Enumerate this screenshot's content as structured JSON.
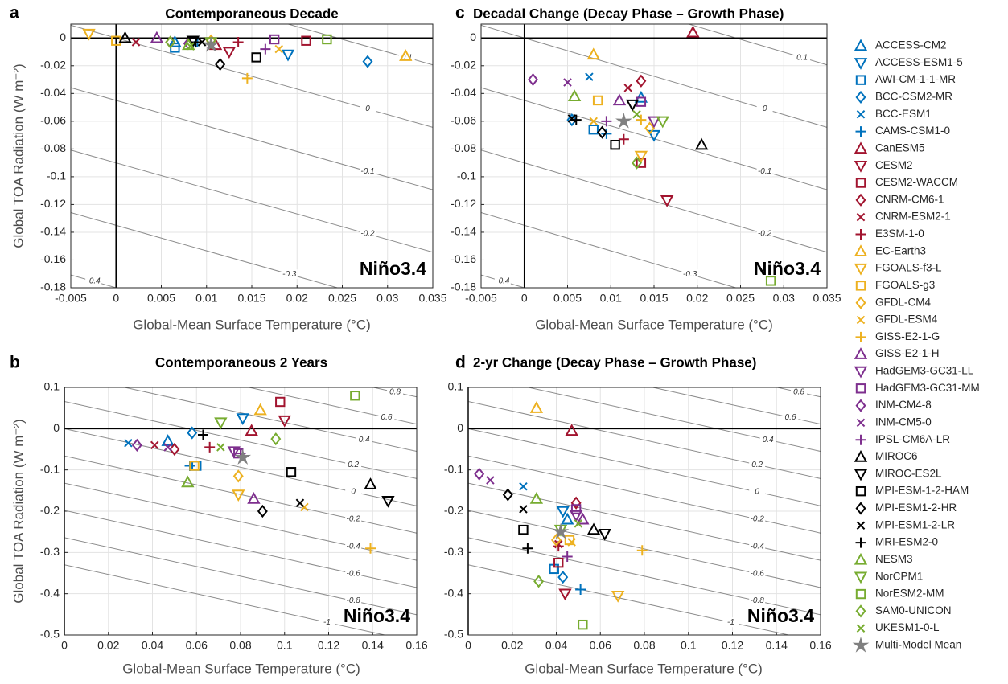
{
  "legend": [
    {
      "name": "ACCESS-CM2",
      "color": "#0072bd",
      "marker": "triangle-up"
    },
    {
      "name": "ACCESS-ESM1-5",
      "color": "#0072bd",
      "marker": "triangle-down"
    },
    {
      "name": "AWI-CM-1-1-MR",
      "color": "#0072bd",
      "marker": "square"
    },
    {
      "name": "BCC-CSM2-MR",
      "color": "#0072bd",
      "marker": "diamond"
    },
    {
      "name": "BCC-ESM1",
      "color": "#0072bd",
      "marker": "x"
    },
    {
      "name": "CAMS-CSM1-0",
      "color": "#0072bd",
      "marker": "plus"
    },
    {
      "name": "CanESM5",
      "color": "#a2142f",
      "marker": "triangle-up"
    },
    {
      "name": "CESM2",
      "color": "#a2142f",
      "marker": "triangle-down"
    },
    {
      "name": "CESM2-WACCM",
      "color": "#a2142f",
      "marker": "square"
    },
    {
      "name": "CNRM-CM6-1",
      "color": "#a2142f",
      "marker": "diamond"
    },
    {
      "name": "CNRM-ESM2-1",
      "color": "#a2142f",
      "marker": "x"
    },
    {
      "name": "E3SM-1-0",
      "color": "#a2142f",
      "marker": "plus"
    },
    {
      "name": "EC-Earth3",
      "color": "#edb120",
      "marker": "triangle-up"
    },
    {
      "name": "FGOALS-f3-L",
      "color": "#edb120",
      "marker": "triangle-down"
    },
    {
      "name": "FGOALS-g3",
      "color": "#edb120",
      "marker": "square"
    },
    {
      "name": "GFDL-CM4",
      "color": "#edb120",
      "marker": "diamond"
    },
    {
      "name": "GFDL-ESM4",
      "color": "#edb120",
      "marker": "x"
    },
    {
      "name": "GISS-E2-1-G",
      "color": "#edb120",
      "marker": "plus"
    },
    {
      "name": "GISS-E2-1-H",
      "color": "#7e2f8e",
      "marker": "triangle-up"
    },
    {
      "name": "HadGEM3-GC31-LL",
      "color": "#7e2f8e",
      "marker": "triangle-down"
    },
    {
      "name": "HadGEM3-GC31-MM",
      "color": "#7e2f8e",
      "marker": "square"
    },
    {
      "name": "INM-CM4-8",
      "color": "#7e2f8e",
      "marker": "diamond"
    },
    {
      "name": "INM-CM5-0",
      "color": "#7e2f8e",
      "marker": "x"
    },
    {
      "name": "IPSL-CM6A-LR",
      "color": "#7e2f8e",
      "marker": "plus"
    },
    {
      "name": "MIROC6",
      "color": "#000000",
      "marker": "triangle-up"
    },
    {
      "name": "MIROC-ES2L",
      "color": "#000000",
      "marker": "triangle-down"
    },
    {
      "name": "MPI-ESM-1-2-HAM",
      "color": "#000000",
      "marker": "square"
    },
    {
      "name": "MPI-ESM1-2-HR",
      "color": "#000000",
      "marker": "diamond"
    },
    {
      "name": "MPI-ESM1-2-LR",
      "color": "#000000",
      "marker": "x"
    },
    {
      "name": "MRI-ESM2-0",
      "color": "#000000",
      "marker": "plus"
    },
    {
      "name": "NESM3",
      "color": "#77ac30",
      "marker": "triangle-up"
    },
    {
      "name": "NorCPM1",
      "color": "#77ac30",
      "marker": "triangle-down"
    },
    {
      "name": "NorESM2-MM",
      "color": "#77ac30",
      "marker": "square"
    },
    {
      "name": "SAM0-UNICON",
      "color": "#77ac30",
      "marker": "diamond"
    },
    {
      "name": "UKESM1-0-L",
      "color": "#77ac30",
      "marker": "x"
    },
    {
      "name": "Multi-Model Mean",
      "color": "#808080",
      "marker": "star"
    }
  ],
  "chart_data": [
    {
      "type": "scatter",
      "panel_label": "a",
      "title": "Contemporaneous Decade",
      "xlabel": "Global-Mean Surface Temperature (°C)",
      "ylabel": "Global TOA Radiation (W m⁻²)",
      "annotation": "Niño3.4",
      "xlim": [
        -0.005,
        0.035
      ],
      "xticks": [
        -0.005,
        0,
        0.005,
        0.01,
        0.015,
        0.02,
        0.025,
        0.03,
        0.035
      ],
      "ylim": [
        -0.18,
        0.01
      ],
      "yticks": [
        -0.18,
        -0.16,
        -0.14,
        -0.12,
        -0.1,
        -0.08,
        -0.06,
        -0.04,
        -0.02,
        0
      ],
      "grid": true,
      "x": [
        0.0065,
        0.019,
        0.0065,
        0.0278,
        0.0085,
        0.009,
        0.011,
        0.0125,
        0.021,
        0.006,
        0.0022,
        0.0135,
        0.032,
        -0.003,
        0.0,
        0.0105,
        0.018,
        0.0145,
        0.0045,
        0.0105,
        0.0175,
        0.008,
        0.0105,
        0.0165,
        0.001,
        0.0085,
        0.0155,
        0.0115,
        0.0095,
        0.0088,
        0.008,
        0.0105,
        0.0233,
        0.006,
        0.0082,
        0.0105
      ],
      "values": [
        -0.003,
        -0.012,
        -0.007,
        -0.017,
        -0.004,
        -0.003,
        -0.005,
        -0.01,
        -0.002,
        -0.003,
        -0.003,
        -0.003,
        -0.013,
        0.003,
        -0.002,
        -0.002,
        -0.008,
        -0.029,
        0.0,
        -0.003,
        -0.001,
        -0.004,
        -0.005,
        -0.008,
        0.0,
        -0.002,
        -0.014,
        -0.019,
        -0.003,
        -0.003,
        -0.005,
        -0.003,
        -0.001,
        -0.003,
        -0.006,
        -0.005
      ],
      "contours": [
        {
          "level": 0.1,
          "x": [
            -0.005,
            0.035
          ],
          "y": [
            0.0542,
            -0.0194
          ]
        },
        {
          "level": 0,
          "x": [
            -0.005,
            0.035
          ],
          "y": [
            0.0092,
            -0.0644
          ]
        },
        {
          "level": -0.1,
          "x": [
            -0.005,
            0.035
          ],
          "y": [
            -0.0358,
            -0.1094
          ]
        },
        {
          "level": -0.2,
          "x": [
            -0.005,
            0.035
          ],
          "y": [
            -0.0808,
            -0.1544
          ]
        },
        {
          "level": -0.3,
          "x": [
            -0.005,
            0.035
          ],
          "y": [
            -0.1258,
            -0.1994
          ]
        },
        {
          "level": -0.4,
          "x": [
            -0.005,
            0.035
          ],
          "y": [
            -0.1708,
            -0.2444
          ]
        }
      ]
    },
    {
      "type": "scatter",
      "panel_label": "b",
      "title": "Contemporaneous 2 Years",
      "xlabel": "Global-Mean Surface Temperature (°C)",
      "ylabel": "Global TOA Radiation (W m⁻²)",
      "annotation": "Niño3.4",
      "xlim": [
        0,
        0.16
      ],
      "xticks": [
        0,
        0.02,
        0.04,
        0.06,
        0.08,
        0.1,
        0.12,
        0.14,
        0.16
      ],
      "ylim": [
        -0.5,
        0.1
      ],
      "yticks": [
        -0.5,
        -0.4,
        -0.3,
        -0.2,
        -0.1,
        0,
        0.1
      ],
      "grid": true,
      "x": [
        0.047,
        0.081,
        0.06,
        0.058,
        0.029,
        0.057,
        0.085,
        0.1,
        0.098,
        0.05,
        0.041,
        0.066,
        0.089,
        0.079,
        0.059,
        0.079,
        0.109,
        0.139,
        0.086,
        0.077,
        0.079,
        0.033,
        0.047,
        0.08,
        0.139,
        0.147,
        0.103,
        0.09,
        0.107,
        0.063,
        0.056,
        0.071,
        0.132,
        0.096,
        0.071,
        0.081
      ],
      "values": [
        -0.03,
        0.025,
        -0.09,
        -0.01,
        -0.035,
        -0.09,
        -0.005,
        0.02,
        0.065,
        -0.05,
        -0.04,
        -0.045,
        0.045,
        -0.16,
        -0.09,
        -0.115,
        -0.19,
        -0.29,
        -0.17,
        -0.055,
        -0.06,
        -0.04,
        -0.045,
        -0.06,
        -0.135,
        -0.175,
        -0.105,
        -0.2,
        -0.18,
        -0.015,
        -0.13,
        0.015,
        0.08,
        -0.025,
        -0.045,
        -0.07
      ],
      "contours": [
        {
          "level": 0.8,
          "x": [
            0,
            0.16
          ],
          "y": [
            0.264,
            0.077
          ]
        },
        {
          "level": 0.6,
          "x": [
            0,
            0.16
          ],
          "y": [
            0.198,
            0.011
          ]
        },
        {
          "level": 0.4,
          "x": [
            0,
            0.16
          ],
          "y": [
            0.132,
            -0.055
          ]
        },
        {
          "level": 0.2,
          "x": [
            0,
            0.16
          ],
          "y": [
            0.066,
            -0.121
          ]
        },
        {
          "level": 0,
          "x": [
            0,
            0.16
          ],
          "y": [
            0,
            -0.187
          ]
        },
        {
          "level": -0.2,
          "x": [
            0,
            0.16
          ],
          "y": [
            -0.066,
            -0.253
          ]
        },
        {
          "level": -0.4,
          "x": [
            0,
            0.16
          ],
          "y": [
            -0.132,
            -0.319
          ]
        },
        {
          "level": -0.6,
          "x": [
            0,
            0.16
          ],
          "y": [
            -0.198,
            -0.385
          ]
        },
        {
          "level": -0.8,
          "x": [
            0,
            0.16
          ],
          "y": [
            -0.264,
            -0.451
          ]
        },
        {
          "level": -1,
          "x": [
            0,
            0.16
          ],
          "y": [
            -0.33,
            -0.517
          ]
        }
      ]
    },
    {
      "type": "scatter",
      "panel_label": "c",
      "title": "Decadal Change (Decay Phase – Growth Phase)",
      "xlabel": "Global-Mean Surface Temperature (°C)",
      "annotation": "Niño3.4",
      "xlim": [
        -0.005,
        0.035
      ],
      "xticks": [
        -0.005,
        0,
        0.005,
        0.01,
        0.015,
        0.02,
        0.025,
        0.03,
        0.035
      ],
      "ylim": [
        -0.18,
        0.01
      ],
      "yticks": [
        -0.18,
        -0.16,
        -0.14,
        -0.12,
        -0.1,
        -0.08,
        -0.06,
        -0.04,
        -0.02,
        0
      ],
      "grid": true,
      "x": [
        0.0135,
        0.015,
        0.008,
        0.0055,
        0.0075,
        0.0095,
        0.0195,
        0.0165,
        0.0135,
        0.0135,
        0.012,
        0.0115,
        0.008,
        0.0135,
        0.0085,
        0.0145,
        0.008,
        0.0135,
        0.011,
        0.015,
        0.0135,
        0.001,
        0.005,
        0.0095,
        0.0205,
        0.0125,
        0.0105,
        0.009,
        0.0055,
        0.006,
        0.0058,
        0.016,
        0.0285,
        0.013,
        0.013,
        0.0115
      ],
      "values": [
        -0.043,
        -0.07,
        -0.066,
        -0.059,
        -0.028,
        -0.069,
        0.004,
        -0.117,
        -0.09,
        -0.031,
        -0.036,
        -0.073,
        -0.012,
        -0.085,
        -0.045,
        -0.065,
        -0.06,
        -0.059,
        -0.045,
        -0.06,
        -0.046,
        -0.03,
        -0.032,
        -0.06,
        -0.077,
        -0.048,
        -0.077,
        -0.068,
        -0.058,
        -0.059,
        -0.042,
        -0.06,
        -0.175,
        -0.09,
        -0.055,
        -0.06
      ],
      "contours": [
        {
          "level": 0.1,
          "x": [
            -0.005,
            0.035
          ],
          "y": [
            0.0542,
            -0.0194
          ]
        },
        {
          "level": 0,
          "x": [
            -0.005,
            0.035
          ],
          "y": [
            0.0092,
            -0.0644
          ]
        },
        {
          "level": -0.1,
          "x": [
            -0.005,
            0.035
          ],
          "y": [
            -0.0358,
            -0.1094
          ]
        },
        {
          "level": -0.2,
          "x": [
            -0.005,
            0.035
          ],
          "y": [
            -0.0808,
            -0.1544
          ]
        },
        {
          "level": -0.3,
          "x": [
            -0.005,
            0.035
          ],
          "y": [
            -0.1258,
            -0.1994
          ]
        },
        {
          "level": -0.4,
          "x": [
            -0.005,
            0.035
          ],
          "y": [
            -0.1708,
            -0.2444
          ]
        }
      ]
    },
    {
      "type": "scatter",
      "panel_label": "d",
      "title": "2-yr Change (Decay Phase – Growth Phase)",
      "xlabel": "Global-Mean Surface Temperature (°C)",
      "annotation": "Niño3.4",
      "xlim": [
        0,
        0.16
      ],
      "xticks": [
        0,
        0.02,
        0.04,
        0.06,
        0.08,
        0.1,
        0.12,
        0.14,
        0.16
      ],
      "ylim": [
        -0.5,
        0.1
      ],
      "yticks": [
        -0.5,
        -0.4,
        -0.3,
        -0.2,
        -0.1,
        0,
        0.1
      ],
      "grid": true,
      "x": [
        0.045,
        0.043,
        0.039,
        0.043,
        0.025,
        0.051,
        0.047,
        0.044,
        0.041,
        0.049,
        0.041,
        0.041,
        0.031,
        0.068,
        0.046,
        0.04,
        0.047,
        0.079,
        0.052,
        0.049,
        0.049,
        0.005,
        0.01,
        0.045,
        0.057,
        0.062,
        0.025,
        0.018,
        0.025,
        0.027,
        0.031,
        0.042,
        0.052,
        0.032,
        0.05,
        0.042
      ],
      "values": [
        -0.22,
        -0.2,
        -0.34,
        -0.36,
        -0.14,
        -0.39,
        -0.005,
        -0.4,
        -0.325,
        -0.18,
        -0.28,
        -0.285,
        0.05,
        -0.405,
        -0.27,
        -0.27,
        -0.275,
        -0.295,
        -0.22,
        -0.21,
        -0.195,
        -0.11,
        -0.125,
        -0.31,
        -0.245,
        -0.255,
        -0.245,
        -0.16,
        -0.195,
        -0.29,
        -0.17,
        -0.245,
        -0.475,
        -0.37,
        -0.23,
        -0.25
      ],
      "contours": [
        {
          "level": 0.8,
          "x": [
            0,
            0.16
          ],
          "y": [
            0.264,
            0.077
          ]
        },
        {
          "level": 0.6,
          "x": [
            0,
            0.16
          ],
          "y": [
            0.198,
            0.011
          ]
        },
        {
          "level": 0.4,
          "x": [
            0,
            0.16
          ],
          "y": [
            0.132,
            -0.055
          ]
        },
        {
          "level": 0.2,
          "x": [
            0,
            0.16
          ],
          "y": [
            0.066,
            -0.121
          ]
        },
        {
          "level": 0,
          "x": [
            0,
            0.16
          ],
          "y": [
            0,
            -0.187
          ]
        },
        {
          "level": -0.2,
          "x": [
            0,
            0.16
          ],
          "y": [
            -0.066,
            -0.253
          ]
        },
        {
          "level": -0.4,
          "x": [
            0,
            0.16
          ],
          "y": [
            -0.132,
            -0.319
          ]
        },
        {
          "level": -0.6,
          "x": [
            0,
            0.16
          ],
          "y": [
            -0.198,
            -0.385
          ]
        },
        {
          "level": -0.8,
          "x": [
            0,
            0.16
          ],
          "y": [
            -0.264,
            -0.451
          ]
        },
        {
          "level": -1,
          "x": [
            0,
            0.16
          ],
          "y": [
            -0.33,
            -0.517
          ]
        }
      ]
    }
  ]
}
